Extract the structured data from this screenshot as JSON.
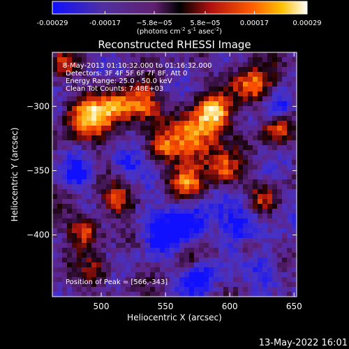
{
  "chart_data": {
    "type": "heatmap",
    "title": "Reconstructed RHESSI Image",
    "xlabel": "Heliocentric X (arcsec)",
    "ylabel": "Heliocentric Y (arcsec)",
    "xlim": [
      462,
      652
    ],
    "ylim": [
      -448,
      -258
    ],
    "x_ticks": [
      500,
      550,
      600,
      650
    ],
    "y_ticks": [
      -300,
      -350,
      -400
    ],
    "colorbar": {
      "range": [
        -0.00029,
        0.00029
      ],
      "tick_values": [
        -0.00029,
        -0.00017,
        -5.8e-05,
        5.8e-05,
        0.00017,
        0.00029
      ],
      "tick_labels": [
        "-0.00029",
        "-0.00017",
        "−5.8e−05",
        "5.8e−05",
        "0.00017",
        "0.00029"
      ],
      "unit_main": "(photons cm",
      "unit_exp1": "-2",
      "unit_s": " s",
      "unit_exp2": "-1",
      "unit_asec": " asec",
      "unit_exp3": "-2",
      "unit_close": ")"
    },
    "annotations": [
      " 8-May-2013 01:10:32.000 to 01:16:32.000",
      "Detectors: 3F 4F 5F 6F 7F 8F, Att 0",
      "Energy Range: 25.0 - 50.0 keV",
      "Clean     Tot Counts: 7.48E+03"
    ],
    "peak_label": "Position of Peak = [566,-343]",
    "peak": [
      566,
      -343
    ],
    "colors": [
      "#0000ff",
      "#3c30b8",
      "#5a2080",
      "#000000",
      "#c01010",
      "#ff5000",
      "#ffb000",
      "#ffffff"
    ]
  },
  "footer": {
    "timestamp": "13-May-2022 16:01"
  }
}
